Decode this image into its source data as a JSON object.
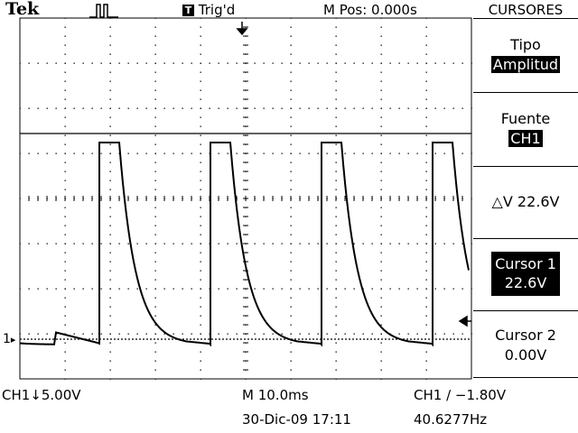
{
  "header": {
    "brand": "Tek",
    "trigger_icon": "T",
    "trigger_status": "Trig'd",
    "m_pos": "M Pos: 0.000s",
    "menu_title": "CURSORES"
  },
  "menu": {
    "tipo": {
      "label": "Tipo",
      "value": "Amplitud"
    },
    "fuente": {
      "label": "Fuente",
      "value": "CH1"
    },
    "delta": {
      "label": "△V 22.6V"
    },
    "cursor1": {
      "label": "Cursor 1",
      "value": "22.6V"
    },
    "cursor2": {
      "label": "Cursor 2",
      "value": "0.00V"
    }
  },
  "footer": {
    "ch1_scale": "CH1↓5.00V",
    "timebase": "M 10.0ms",
    "trigger_info": "CH1 ∕ −1.80V",
    "date": "30-Dic-09 17:11",
    "frequency": "40.6277Hz"
  },
  "screen": {
    "ground_marker": "1",
    "cursor1_level": "22.6V",
    "cursor2_level": "0.00V"
  },
  "colors": {
    "background": "#ffffff",
    "trace": "#000000",
    "graticule": "#000000"
  }
}
